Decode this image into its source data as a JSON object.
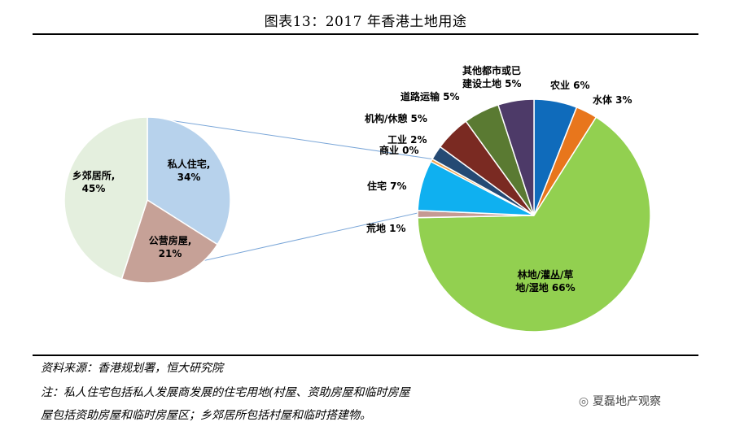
{
  "title": "图表13：2017 年香港土地用途",
  "chart_data": [
    {
      "type": "pie",
      "slices": [
        {
          "label_lines": [
            "私人住宅,",
            "34%"
          ],
          "value": 34,
          "color": "#b7d2ec"
        },
        {
          "label_lines": [
            "公营房屋,",
            "21%"
          ],
          "value": 21,
          "color": "#c6a197"
        },
        {
          "label_lines": [
            "乡郊居所,",
            "45%"
          ],
          "value": 45,
          "color": "#e4efde"
        }
      ]
    },
    {
      "type": "pie",
      "slices": [
        {
          "label_lines": [
            "农业 6%"
          ],
          "value": 6,
          "color": "#0f6bbb"
        },
        {
          "label_lines": [
            "水体 3%"
          ],
          "value": 3,
          "color": "#e8761c"
        },
        {
          "label_lines": [
            "林地/灌丛/草",
            "地/湿地 66%"
          ],
          "value": 66,
          "color": "#92d050"
        },
        {
          "label_lines": [
            "荒地 1%"
          ],
          "value": 1,
          "color": "#c59a93"
        },
        {
          "label_lines": [
            "住宅 7%"
          ],
          "value": 7,
          "color": "#0fb0f0"
        },
        {
          "label_lines": [
            "商业 0%"
          ],
          "value": 0.4,
          "color": "#f0a048"
        },
        {
          "label_lines": [
            "工业 2%"
          ],
          "value": 2,
          "color": "#254a74"
        },
        {
          "label_lines": [
            "机构/休憩 5%"
          ],
          "value": 5,
          "color": "#7a2a22"
        },
        {
          "label_lines": [
            "道路运输 5%"
          ],
          "value": 5,
          "color": "#5a7a32"
        },
        {
          "label_lines": [
            "其他都市或已",
            "建设土地 5%"
          ],
          "value": 5,
          "color": "#4d3a68"
        }
      ]
    }
  ],
  "footer": {
    "source": "资料来源：香港规划署，恒大研究院",
    "note_line1": "注：私人住宅包括私人发展商发展的住宅用地(村屋、资助房屋和临时房屋",
    "note_line2": "屋包括资助房屋和临时房屋区；乡郊居所包括村屋和临时搭建物。",
    "watermark": "夏磊地产观察"
  }
}
